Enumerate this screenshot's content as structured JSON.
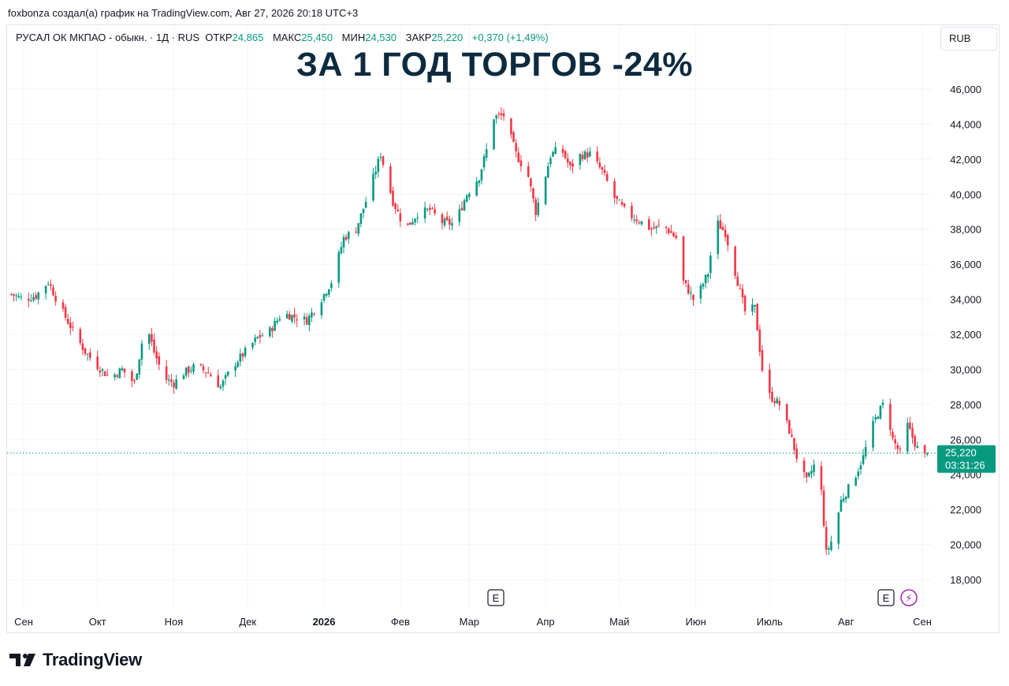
{
  "header": {
    "attribution": "foxbonza создал(а) график на TradingView.com, Авг 27, 2026 20:18 UTC+3"
  },
  "legend": {
    "symbol": "РУСАЛ ОК МКПАО - обыкн. · 1Д · RUS",
    "open_label": "ОТКР",
    "open_value": "24,865",
    "high_label": "МАКС",
    "high_value": "25,450",
    "low_label": "МИН",
    "low_value": "24,530",
    "close_label": "ЗАКР",
    "close_value": "25,220",
    "change": "+0,370 (+1,49%)"
  },
  "headline": "ЗА 1 ГОД ТОРГОВ -24%",
  "currency_button": "RUB",
  "price_tag": {
    "price": "25,220",
    "countdown": "03:31:26"
  },
  "event_markers": [
    {
      "label": "E",
      "date": "Мар"
    },
    {
      "label": "E",
      "date": "Авг"
    },
    {
      "label": "⚡",
      "date": "Авг"
    }
  ],
  "brand": {
    "name": "TradingView"
  },
  "colors": {
    "up": "#089981",
    "down": "#f23645",
    "headline": "#0d2a3f",
    "grid": "#f0f3fa"
  },
  "chart_data": {
    "type": "candlestick",
    "currency": "RUB",
    "last_price": 25220,
    "ylim": [
      17000,
      46500
    ],
    "y_ticks": [
      18000,
      20000,
      22000,
      24000,
      26000,
      28000,
      30000,
      32000,
      34000,
      36000,
      38000,
      40000,
      42000,
      44000,
      46000
    ],
    "y_tick_labels": [
      "18,000",
      "20,000",
      "22,000",
      "24,000",
      "26,000",
      "28,000",
      "30,000",
      "32,000",
      "34,000",
      "36,000",
      "38,000",
      "40,000",
      "42,000",
      "44,000",
      "46,000"
    ],
    "x_tick_labels": [
      "Сен",
      "Окт",
      "Ноя",
      "Дек",
      "2026",
      "Фев",
      "Мар",
      "Апр",
      "Май",
      "Июн",
      "Июль",
      "Авг",
      "Сен"
    ],
    "x_tick_days": [
      5,
      35,
      66,
      96,
      127,
      158,
      186,
      217,
      247,
      278,
      308,
      339,
      370
    ],
    "grid": true,
    "price_path": [
      [
        0,
        34300
      ],
      [
        5,
        34000
      ],
      [
        10,
        34200
      ],
      [
        15,
        35000
      ],
      [
        20,
        33500
      ],
      [
        25,
        32200
      ],
      [
        30,
        31000
      ],
      [
        35,
        30200
      ],
      [
        40,
        29500
      ],
      [
        45,
        30000
      ],
      [
        50,
        29200
      ],
      [
        53,
        31500
      ],
      [
        55,
        32500
      ],
      [
        58,
        31000
      ],
      [
        62,
        29500
      ],
      [
        66,
        29200
      ],
      [
        70,
        29800
      ],
      [
        75,
        30200
      ],
      [
        80,
        29800
      ],
      [
        85,
        29000
      ],
      [
        90,
        30200
      ],
      [
        95,
        31000
      ],
      [
        100,
        31800
      ],
      [
        105,
        32200
      ],
      [
        110,
        33200
      ],
      [
        115,
        33000
      ],
      [
        120,
        32800
      ],
      [
        125,
        33800
      ],
      [
        130,
        35000
      ],
      [
        135,
        37500
      ],
      [
        140,
        38000
      ],
      [
        145,
        40000
      ],
      [
        150,
        42300
      ],
      [
        155,
        39600
      ],
      [
        160,
        38000
      ],
      [
        165,
        38900
      ],
      [
        170,
        39100
      ],
      [
        175,
        38400
      ],
      [
        180,
        38300
      ],
      [
        185,
        40000
      ],
      [
        190,
        41000
      ],
      [
        193,
        42500
      ],
      [
        196,
        44400
      ],
      [
        200,
        44500
      ],
      [
        205,
        42300
      ],
      [
        210,
        41000
      ],
      [
        213,
        39000
      ],
      [
        215,
        40000
      ],
      [
        219,
        42200
      ],
      [
        223,
        42700
      ],
      [
        227,
        41500
      ],
      [
        231,
        42200
      ],
      [
        235,
        42300
      ],
      [
        240,
        41300
      ],
      [
        245,
        39800
      ],
      [
        250,
        38900
      ],
      [
        255,
        38500
      ],
      [
        260,
        38000
      ],
      [
        265,
        38200
      ],
      [
        270,
        37500
      ],
      [
        273,
        35000
      ],
      [
        277,
        34000
      ],
      [
        280,
        34600
      ],
      [
        283,
        35500
      ],
      [
        286,
        38500
      ],
      [
        290,
        37800
      ],
      [
        295,
        35000
      ],
      [
        298,
        33300
      ],
      [
        302,
        33500
      ],
      [
        305,
        30000
      ],
      [
        308,
        28500
      ],
      [
        312,
        28000
      ],
      [
        316,
        26500
      ],
      [
        320,
        24500
      ],
      [
        323,
        23600
      ],
      [
        326,
        24500
      ],
      [
        329,
        23000
      ],
      [
        331,
        19500
      ],
      [
        334,
        20500
      ],
      [
        337,
        22500
      ],
      [
        340,
        23200
      ],
      [
        343,
        24000
      ],
      [
        346,
        25000
      ],
      [
        349,
        26500
      ],
      [
        352,
        27500
      ],
      [
        355,
        28200
      ],
      [
        358,
        26000
      ],
      [
        361,
        25200
      ],
      [
        364,
        26800
      ],
      [
        367,
        25800
      ],
      [
        370,
        24900
      ],
      [
        372,
        25220
      ]
    ]
  }
}
